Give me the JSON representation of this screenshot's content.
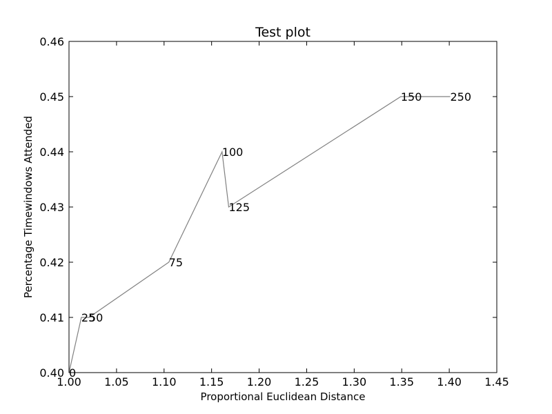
{
  "chart_data": {
    "type": "line",
    "title": "Test plot",
    "xlabel": "Proportional Euclidean Distance",
    "ylabel": "Percentage Timewindows Attended",
    "xlim": [
      1.0,
      1.45
    ],
    "ylim": [
      0.4,
      0.46
    ],
    "xticks": [
      1.0,
      1.05,
      1.1,
      1.15,
      1.2,
      1.25,
      1.3,
      1.35,
      1.4,
      1.45
    ],
    "xtick_labels": [
      "1.00",
      "1.05",
      "1.10",
      "1.15",
      "1.20",
      "1.25",
      "1.30",
      "1.35",
      "1.40",
      "1.45"
    ],
    "yticks": [
      0.4,
      0.41,
      0.42,
      0.43,
      0.44,
      0.45,
      0.46
    ],
    "ytick_labels": [
      "0.40",
      "0.41",
      "0.42",
      "0.43",
      "0.44",
      "0.45",
      "0.46"
    ],
    "grid": false,
    "line_color": "#808080",
    "series": [
      {
        "x": [
          1.0,
          1.013,
          1.021,
          1.105,
          1.161,
          1.168,
          1.349,
          1.401
        ],
        "y": [
          0.4,
          0.41,
          0.41,
          0.42,
          0.44,
          0.43,
          0.45,
          0.45
        ],
        "labels": [
          "0",
          "25",
          "50",
          "75",
          "100",
          "125",
          "150",
          "250"
        ]
      }
    ]
  }
}
